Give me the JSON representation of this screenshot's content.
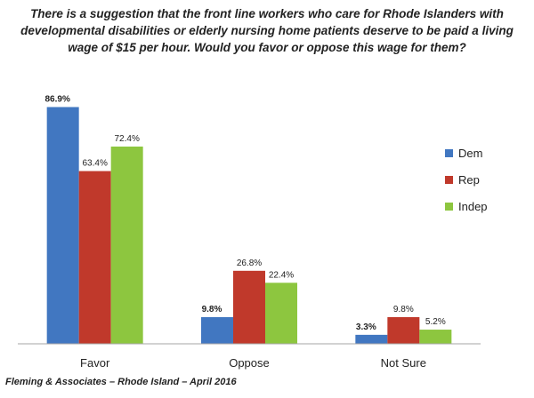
{
  "chart_data": {
    "type": "bar",
    "title": "There is a suggestion that the front line workers who care for Rhode Islanders with developmental disabilities or elderly nursing home patients deserve to be paid a living wage of $15 per hour. Would you favor or oppose this wage for them?",
    "categories": [
      "Favor",
      "Oppose",
      "Not Sure"
    ],
    "series": [
      {
        "name": "Dem",
        "color": "#4177c1",
        "values": [
          86.9,
          9.8,
          3.3
        ],
        "labels": [
          "86.9%",
          "9.8%",
          "3.3%"
        ]
      },
      {
        "name": "Rep",
        "color": "#c0392b",
        "values": [
          63.4,
          26.8,
          9.8
        ],
        "labels": [
          "63.4%",
          "26.8%",
          "9.8%"
        ]
      },
      {
        "name": "Indep",
        "color": "#8dc63f",
        "values": [
          72.4,
          22.4,
          5.2
        ],
        "labels": [
          "72.4%",
          "22.4%",
          "5.2%"
        ]
      }
    ],
    "bold_label_series": "Dem",
    "ylim": [
      0,
      90
    ],
    "grid": false,
    "legend_position": "right"
  },
  "source": "Fleming & Associates – Rhode Island – April 2016"
}
